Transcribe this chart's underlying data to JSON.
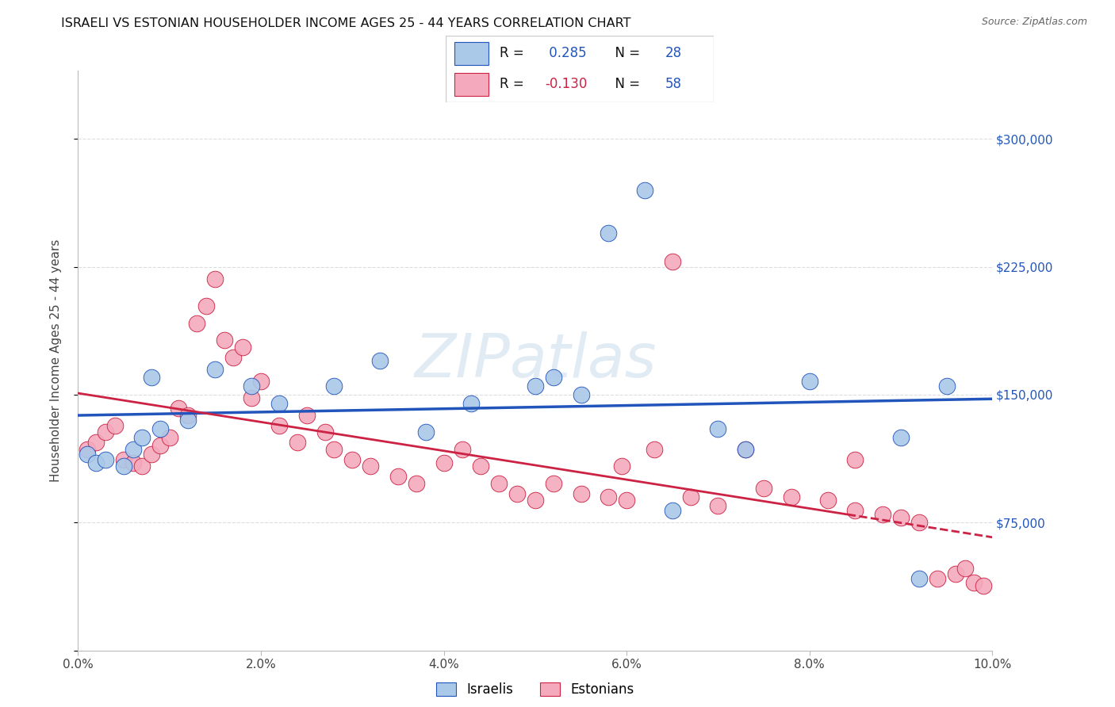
{
  "title": "ISRAELI VS ESTONIAN HOUSEHOLDER INCOME AGES 25 - 44 YEARS CORRELATION CHART",
  "source_text": "Source: ZipAtlas.com",
  "ylabel": "Householder Income Ages 25 - 44 years",
  "xlim": [
    0.0,
    0.1
  ],
  "ylim": [
    0,
    340000
  ],
  "yticks": [
    0,
    75000,
    150000,
    225000,
    300000
  ],
  "ytick_labels": [
    "",
    "$75,000",
    "$150,000",
    "$225,000",
    "$300,000"
  ],
  "xtick_values": [
    0.0,
    0.02,
    0.04,
    0.06,
    0.08,
    0.1
  ],
  "xtick_labels": [
    "0.0%",
    "2.0%",
    "4.0%",
    "6.0%",
    "8.0%",
    "10.0%"
  ],
  "israeli_color": "#aac8e8",
  "estonian_color": "#f4aabc",
  "blue_line_color": "#2255bb",
  "red_line_color": "#cc2244",
  "R_israeli": 0.285,
  "N_israeli": 28,
  "R_estonian": -0.13,
  "N_estonian": 58,
  "watermark": "ZIPatlas",
  "grid_color": "#dddddd",
  "israeli_x": [
    0.001,
    0.002,
    0.003,
    0.005,
    0.006,
    0.007,
    0.008,
    0.009,
    0.012,
    0.015,
    0.019,
    0.022,
    0.028,
    0.033,
    0.038,
    0.043,
    0.05,
    0.052,
    0.055,
    0.058,
    0.062,
    0.065,
    0.07,
    0.073,
    0.08,
    0.09,
    0.092,
    0.095
  ],
  "israeli_y": [
    115000,
    110000,
    112000,
    108000,
    118000,
    125000,
    160000,
    130000,
    135000,
    165000,
    155000,
    145000,
    155000,
    170000,
    128000,
    145000,
    155000,
    160000,
    150000,
    245000,
    270000,
    82000,
    130000,
    118000,
    158000,
    125000,
    42000,
    155000
  ],
  "estonian_x": [
    0.001,
    0.002,
    0.003,
    0.004,
    0.005,
    0.006,
    0.007,
    0.008,
    0.009,
    0.01,
    0.011,
    0.012,
    0.013,
    0.014,
    0.015,
    0.016,
    0.017,
    0.018,
    0.019,
    0.02,
    0.022,
    0.024,
    0.025,
    0.027,
    0.028,
    0.03,
    0.032,
    0.035,
    0.037,
    0.04,
    0.042,
    0.044,
    0.046,
    0.048,
    0.05,
    0.052,
    0.055,
    0.058,
    0.06,
    0.065,
    0.067,
    0.07,
    0.073,
    0.075,
    0.078,
    0.082,
    0.085,
    0.088,
    0.09,
    0.092,
    0.094,
    0.096,
    0.097,
    0.098,
    0.099,
    0.0595,
    0.085,
    0.063
  ],
  "estonian_y": [
    118000,
    122000,
    128000,
    132000,
    112000,
    110000,
    108000,
    115000,
    120000,
    125000,
    142000,
    138000,
    192000,
    202000,
    218000,
    182000,
    172000,
    178000,
    148000,
    158000,
    132000,
    122000,
    138000,
    128000,
    118000,
    112000,
    108000,
    102000,
    98000,
    110000,
    118000,
    108000,
    98000,
    92000,
    88000,
    98000,
    92000,
    90000,
    88000,
    228000,
    90000,
    85000,
    118000,
    95000,
    90000,
    88000,
    82000,
    80000,
    78000,
    75000,
    42000,
    45000,
    48000,
    40000,
    38000,
    108000,
    112000,
    118000
  ]
}
